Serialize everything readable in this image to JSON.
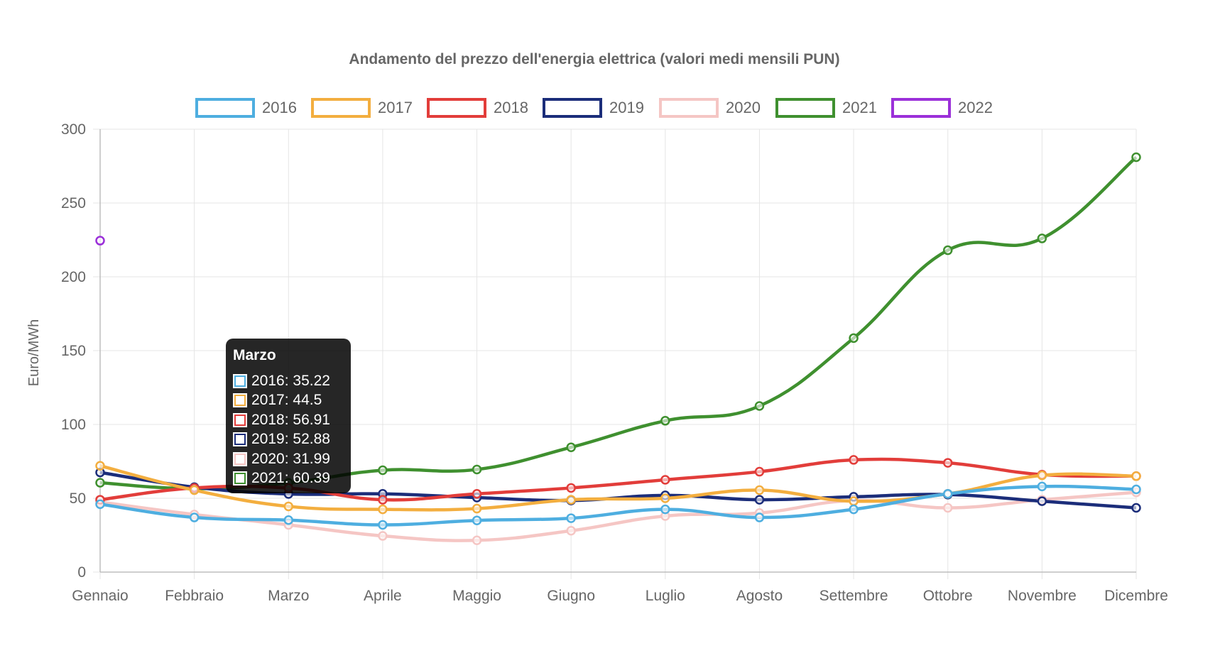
{
  "chart_data": {
    "type": "line",
    "title": "Andamento del prezzo dell'energia elettrica (valori medi mensili PUN)",
    "xlabel": "",
    "ylabel": "Euro/MWh",
    "ylim": [
      0,
      300
    ],
    "yticks": [
      "0",
      "50",
      "100",
      "150",
      "200",
      "250",
      "300"
    ],
    "grid": true,
    "legend_position": "top",
    "categories": [
      "Gennaio",
      "Febbraio",
      "Marzo",
      "Aprile",
      "Maggio",
      "Giugno",
      "Luglio",
      "Agosto",
      "Settembre",
      "Ottobre",
      "Novembre",
      "Dicembre"
    ],
    "series": [
      {
        "name": "2016",
        "color": "#4eaee0",
        "values": [
          46.0,
          37.0,
          35.22,
          32.0,
          35.0,
          36.5,
          42.5,
          37.0,
          42.5,
          53.0,
          58.0,
          56.0
        ]
      },
      {
        "name": "2017",
        "color": "#f3ae3f",
        "values": [
          72.0,
          55.5,
          44.5,
          42.5,
          43.0,
          49.0,
          50.0,
          55.5,
          48.0,
          53.0,
          65.5,
          65.0
        ]
      },
      {
        "name": "2018",
        "color": "#e23d3a",
        "values": [
          49.0,
          57.0,
          56.91,
          49.0,
          53.0,
          57.0,
          62.5,
          68.0,
          76.0,
          74.0,
          66.0,
          65.0
        ]
      },
      {
        "name": "2019",
        "color": "#1b2d7a",
        "values": [
          67.5,
          57.5,
          52.88,
          53.0,
          50.5,
          48.5,
          52.0,
          49.0,
          51.0,
          52.5,
          48.0,
          43.5
        ]
      },
      {
        "name": "2020",
        "color": "#f5c6c4",
        "values": [
          47.5,
          39.0,
          31.99,
          24.5,
          21.5,
          28.0,
          38.0,
          40.0,
          48.5,
          43.5,
          49.0,
          54.0
        ]
      },
      {
        "name": "2021",
        "color": "#3f902f",
        "values": [
          60.5,
          56.5,
          60.39,
          69.0,
          69.5,
          84.5,
          102.5,
          112.5,
          158.5,
          218.0,
          226.0,
          281.0
        ]
      },
      {
        "name": "2022",
        "color": "#9b30d9",
        "values": [
          224.5,
          null,
          null,
          null,
          null,
          null,
          null,
          null,
          null,
          null,
          null,
          null
        ]
      }
    ]
  },
  "tooltip": {
    "title": "Marzo",
    "rows": [
      {
        "text": "2016: 35.22",
        "color": "#4eaee0"
      },
      {
        "text": "2017: 44.5",
        "color": "#f3ae3f"
      },
      {
        "text": "2018: 56.91",
        "color": "#e23d3a"
      },
      {
        "text": "2019: 52.88",
        "color": "#1b2d7a"
      },
      {
        "text": "2020: 31.99",
        "color": "#f5c6c4"
      },
      {
        "text": "2021: 60.39",
        "color": "#3f902f"
      }
    ]
  }
}
